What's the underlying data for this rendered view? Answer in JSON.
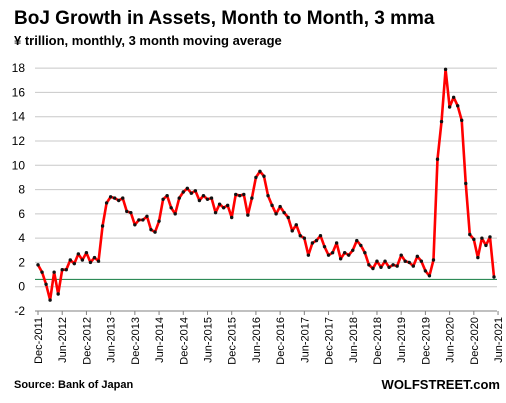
{
  "chart_data": {
    "type": "line",
    "title": "BoJ Growth in Assets, Month to Month, 3 mma",
    "subtitle": "¥ trillion, monthly, 3 month moving average",
    "source": "Source: Bank of Japan",
    "brand": "WOLFSTREET.com",
    "ylim": [
      -2,
      19
    ],
    "yticks": [
      -2,
      0,
      2,
      4,
      6,
      8,
      10,
      12,
      14,
      16,
      18
    ],
    "grid": true,
    "line_color": "#ff0000",
    "marker_color": "#111111",
    "reference_line": {
      "value": 0.6,
      "color": "#2e8b57"
    },
    "x_tick_labels": [
      "Dec-2011",
      "Jun-2012",
      "Dec-2012",
      "Jun-2013",
      "Dec-2013",
      "Jun-2014",
      "Dec-2014",
      "Jun-2015",
      "Dec-2015",
      "Jun-2016",
      "Dec-2016",
      "Jun-2017",
      "Dec-2017",
      "Jun-2018",
      "Dec-2018",
      "Jun-2019",
      "Dec-2019",
      "Jun-2020",
      "Dec-2020",
      "Jun-2021"
    ],
    "x_start": "Dec-2011",
    "x_end": "Jun-2021",
    "series": [
      {
        "values": [
          1.8,
          1.2,
          0.2,
          -1.1,
          1.2,
          -0.6,
          1.4,
          1.4,
          2.2,
          1.9,
          2.7,
          2.2,
          2.8,
          2.0,
          2.4,
          2.1,
          5.0,
          6.9,
          7.4,
          7.3,
          7.1,
          7.3,
          6.2,
          6.1,
          5.1,
          5.5,
          5.5,
          5.8,
          4.7,
          4.5,
          5.4,
          7.2,
          7.5,
          6.5,
          6.0,
          7.3,
          7.8,
          8.1,
          7.7,
          7.9,
          7.1,
          7.5,
          7.2,
          7.3,
          6.1,
          6.8,
          6.5,
          6.7,
          5.7,
          7.6,
          7.5,
          7.6,
          5.9,
          7.3,
          9.0,
          9.5,
          9.1,
          7.5,
          6.7,
          6.0,
          6.6,
          6.1,
          5.7,
          4.6,
          5.1,
          4.2,
          4.0,
          2.6,
          3.6,
          3.8,
          4.2,
          3.3,
          2.6,
          2.8,
          3.6,
          2.3,
          2.8,
          2.6,
          3.0,
          3.8,
          3.4,
          2.8,
          1.8,
          1.5,
          2.1,
          1.6,
          2.1,
          1.6,
          1.8,
          1.7,
          2.6,
          2.1,
          2.0,
          1.7,
          2.5,
          2.1,
          1.3,
          0.9,
          2.2,
          10.5,
          13.6,
          17.9,
          14.8,
          15.6,
          14.9,
          13.7,
          8.5,
          4.3,
          3.9,
          2.4,
          4.0,
          3.4,
          4.1,
          0.8
        ]
      }
    ]
  }
}
